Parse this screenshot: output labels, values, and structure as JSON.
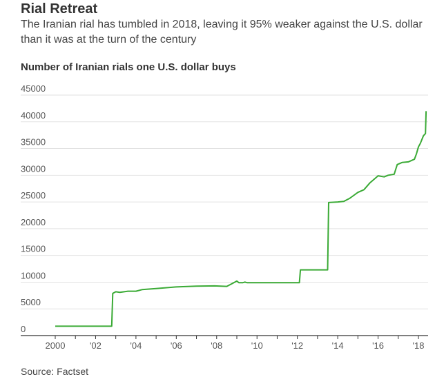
{
  "header": {
    "title": "Rial Retreat",
    "subtitle": "The Iranian rial has tumbled in 2018, leaving it 95% weaker against the U.S. dollar than it was at the turn of the century"
  },
  "footer": {
    "source": "Source: Factset"
  },
  "chart_data": {
    "type": "line",
    "title": "Rial Retreat",
    "ylabel": "Number of Iranian rials one U.S. dollar buys",
    "xlabel": "",
    "ylim": [
      0,
      45000
    ],
    "xlim": [
      2000,
      2018.4
    ],
    "y_ticks": [
      "45000",
      "40000",
      "35000",
      "30000",
      "25000",
      "20000",
      "15000",
      "10000",
      "5000",
      "0"
    ],
    "x_ticks": [
      {
        "year": 2000,
        "label": "2000"
      },
      {
        "year": 2002,
        "label": "'02"
      },
      {
        "year": 2004,
        "label": "'04"
      },
      {
        "year": 2006,
        "label": "'06"
      },
      {
        "year": 2008,
        "label": "'08"
      },
      {
        "year": 2010,
        "label": "'10"
      },
      {
        "year": 2012,
        "label": "'12"
      },
      {
        "year": 2014,
        "label": "'14"
      },
      {
        "year": 2016,
        "label": "'16"
      },
      {
        "year": 2018,
        "label": "'18"
      }
    ],
    "grid": true,
    "line_color": "#3aaa35",
    "series": [
      {
        "x": [
          2000.0,
          2002.8,
          2002.85,
          2003.0,
          2003.2,
          2003.6,
          2004.0,
          2004.3,
          2005.0,
          2006.0,
          2007.0,
          2007.9,
          2008.5,
          2008.8,
          2009.0,
          2009.1,
          2009.3,
          2009.4,
          2009.5,
          2010.0,
          2011.0,
          2012.1,
          2012.15,
          2013.0,
          2013.5,
          2013.55,
          2014.0,
          2014.3,
          2014.6,
          2015.0,
          2015.3,
          2015.6,
          2016.0,
          2016.3,
          2016.5,
          2016.8,
          2016.95,
          2017.2,
          2017.5,
          2017.8,
          2017.9,
          2018.0,
          2018.1,
          2018.25,
          2018.35,
          2018.38
        ],
        "y": [
          1750,
          1750,
          7900,
          8200,
          8100,
          8300,
          8300,
          8600,
          8800,
          9100,
          9250,
          9300,
          9200,
          9800,
          10200,
          9900,
          9900,
          10000,
          9900,
          9900,
          9900,
          9900,
          12300,
          12300,
          12300,
          24900,
          25000,
          25100,
          25700,
          26800,
          27300,
          28600,
          29900,
          29700,
          30000,
          30200,
          32000,
          32400,
          32500,
          33000,
          34000,
          35300,
          36000,
          37400,
          37800,
          42000
        ]
      }
    ]
  }
}
